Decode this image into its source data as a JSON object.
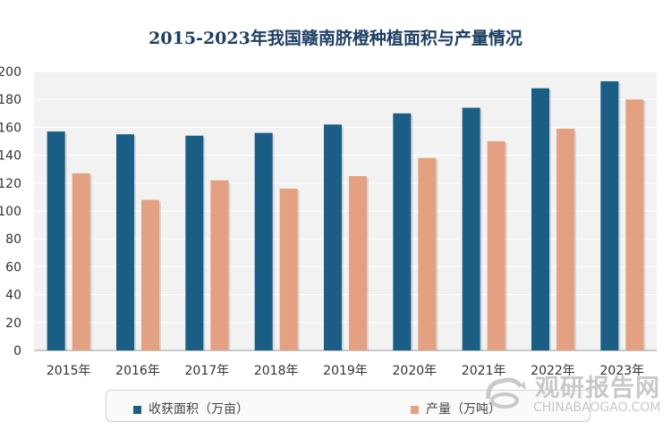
{
  "chart_data": {
    "type": "bar",
    "title": "2015-2023年我国赣南脐橙种植面积与产量情况",
    "categories": [
      "2015年",
      "2016年",
      "2017年",
      "2018年",
      "2019年",
      "2020年",
      "2021年",
      "2022年",
      "2023年"
    ],
    "series": [
      {
        "name": "收获面积（万亩）",
        "color": "#1a5e85",
        "values": [
          157,
          155,
          154,
          156,
          162,
          170,
          174,
          188,
          193
        ]
      },
      {
        "name": "产量（万吨）",
        "color": "#e4a182",
        "values": [
          127,
          108,
          122,
          116,
          125,
          138,
          150,
          159,
          180
        ]
      }
    ],
    "yticks": [
      "0",
      "20",
      "40",
      "60",
      "80",
      "100",
      "120",
      "140",
      "160",
      "180",
      "200"
    ],
    "ylim": [
      0,
      200
    ],
    "grid": true,
    "legend": "bottom"
  },
  "watermark": {
    "cn": "观研报告网",
    "en": "CHINABAOGAO.COM"
  }
}
